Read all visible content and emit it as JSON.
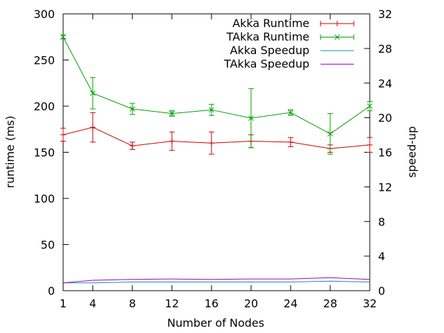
{
  "chart_data": {
    "type": "line",
    "title": "",
    "xlabel": "Number of Nodes",
    "ylabel": "runtime (ms)",
    "y2label": "speed-up",
    "x": [
      1,
      4,
      8,
      12,
      16,
      20,
      24,
      28,
      32
    ],
    "xticks": [
      "1",
      "4",
      "8",
      "12",
      "16",
      "20",
      "24",
      "28",
      "32"
    ],
    "xlim": [
      1,
      32
    ],
    "ylim": [
      0,
      300
    ],
    "yticks": [
      "0",
      "50",
      "100",
      "150",
      "200",
      "250",
      "300"
    ],
    "y2lim": [
      0,
      32
    ],
    "y2ticks": [
      "0",
      "4",
      "8",
      "12",
      "16",
      "20",
      "24",
      "28",
      "32"
    ],
    "grid": false,
    "legend_position": "top-right",
    "series": [
      {
        "name": "Akka Runtime",
        "axis": "left",
        "color": "#cc0000",
        "marker": "plus",
        "values": [
          169,
          177,
          157,
          162,
          160,
          162,
          161,
          154,
          158
        ],
        "errors": [
          7,
          16,
          4,
          10,
          12,
          7,
          5,
          4,
          8
        ]
      },
      {
        "name": "TAkka Runtime",
        "axis": "left",
        "color": "#00a000",
        "marker": "cross",
        "values": [
          275,
          214,
          197,
          192,
          196,
          187,
          193,
          170,
          200
        ],
        "errors": [
          2,
          17,
          6,
          3,
          6,
          32,
          3,
          22,
          5
        ]
      },
      {
        "name": "Akka Speedup",
        "axis": "right",
        "color": "#0e8fb0",
        "marker": "none",
        "values": [
          0.9,
          0.9,
          1.0,
          1.0,
          1.0,
          1.0,
          1.0,
          1.1,
          1.0
        ]
      },
      {
        "name": "TAkka Speedup",
        "axis": "right",
        "color": "#a000c8",
        "marker": "none",
        "values": [
          0.9,
          1.2,
          1.3,
          1.35,
          1.3,
          1.35,
          1.35,
          1.5,
          1.3
        ]
      }
    ]
  }
}
